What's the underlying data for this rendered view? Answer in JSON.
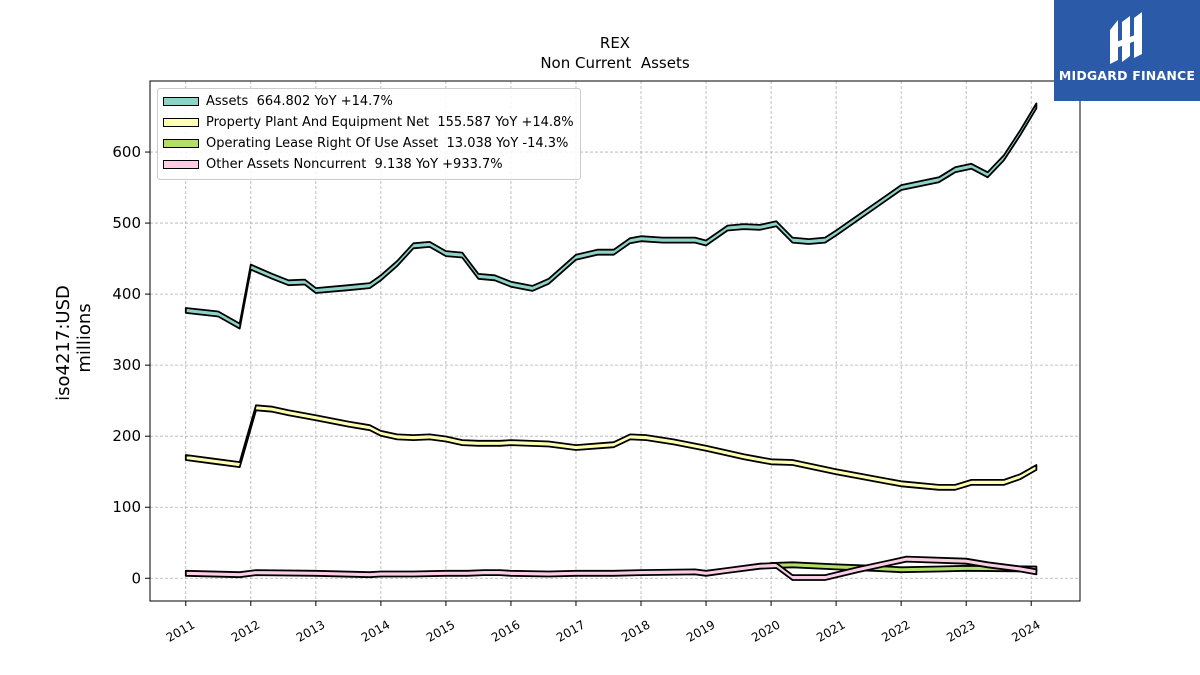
{
  "brand": {
    "name": "MIDGARD FINANCE",
    "color": "#2b5aa8"
  },
  "chart_data": {
    "type": "area",
    "title": "REX",
    "subtitle": "Non Current  Assets",
    "ylabel": "iso4217:USD",
    "ylabel2": "millions",
    "xlabel": "",
    "ylim": [
      -32,
      700
    ],
    "xlim": [
      2010.45,
      2024.75
    ],
    "yticks": [
      0,
      100,
      200,
      300,
      400,
      500,
      600
    ],
    "xticks": [
      "2011",
      "2012",
      "2013",
      "2014",
      "2015",
      "2016",
      "2017",
      "2018",
      "2019",
      "2020",
      "2021",
      "2022",
      "2023",
      "2024"
    ],
    "grid": true,
    "legend_position": "top-left",
    "series": [
      {
        "name": "Assets",
        "legend": "Assets  664.802 YoY +14.7%",
        "color": "#8dd3c7",
        "points": [
          [
            2011.0,
            377
          ],
          [
            2011.5,
            372
          ],
          [
            2011.83,
            355
          ],
          [
            2012.0,
            438
          ],
          [
            2012.33,
            425
          ],
          [
            2012.58,
            416
          ],
          [
            2012.83,
            417
          ],
          [
            2013.0,
            405
          ],
          [
            2013.5,
            409
          ],
          [
            2013.83,
            412
          ],
          [
            2014.0,
            423
          ],
          [
            2014.25,
            443
          ],
          [
            2014.5,
            468
          ],
          [
            2014.75,
            470
          ],
          [
            2015.0,
            457
          ],
          [
            2015.25,
            455
          ],
          [
            2015.5,
            425
          ],
          [
            2015.75,
            423
          ],
          [
            2016.0,
            414
          ],
          [
            2016.33,
            408
          ],
          [
            2016.58,
            418
          ],
          [
            2017.0,
            452
          ],
          [
            2017.33,
            459
          ],
          [
            2017.58,
            459
          ],
          [
            2017.83,
            475
          ],
          [
            2018.0,
            478
          ],
          [
            2018.33,
            476
          ],
          [
            2018.83,
            476
          ],
          [
            2019.0,
            472
          ],
          [
            2019.33,
            493
          ],
          [
            2019.58,
            495
          ],
          [
            2019.83,
            494
          ],
          [
            2020.08,
            499
          ],
          [
            2020.33,
            476
          ],
          [
            2020.58,
            474
          ],
          [
            2020.83,
            476
          ],
          [
            2021.0,
            486
          ],
          [
            2022.0,
            550
          ],
          [
            2022.58,
            561
          ],
          [
            2022.83,
            575
          ],
          [
            2023.08,
            580
          ],
          [
            2023.33,
            568
          ],
          [
            2023.58,
            592
          ],
          [
            2023.83,
            627
          ],
          [
            2024.08,
            665
          ]
        ]
      },
      {
        "name": "Property Plant And Equipment Net",
        "legend": "Property Plant And Equipment Net  155.587 YoY +14.8%",
        "color": "#ffffb3",
        "points": [
          [
            2011.0,
            170
          ],
          [
            2011.5,
            164
          ],
          [
            2011.83,
            160
          ],
          [
            2012.08,
            240
          ],
          [
            2012.33,
            238
          ],
          [
            2012.58,
            233
          ],
          [
            2013.0,
            226
          ],
          [
            2013.5,
            217
          ],
          [
            2013.83,
            212
          ],
          [
            2014.0,
            204
          ],
          [
            2014.25,
            199
          ],
          [
            2014.5,
            198
          ],
          [
            2014.75,
            199
          ],
          [
            2015.0,
            196
          ],
          [
            2015.25,
            191
          ],
          [
            2015.5,
            190
          ],
          [
            2015.83,
            190
          ],
          [
            2016.0,
            191
          ],
          [
            2016.58,
            189
          ],
          [
            2017.0,
            184
          ],
          [
            2017.58,
            188
          ],
          [
            2017.83,
            199
          ],
          [
            2018.08,
            198
          ],
          [
            2018.5,
            192
          ],
          [
            2019.0,
            183
          ],
          [
            2019.58,
            171
          ],
          [
            2020.0,
            164
          ],
          [
            2020.33,
            163
          ],
          [
            2021.0,
            150
          ],
          [
            2021.58,
            140
          ],
          [
            2022.0,
            133
          ],
          [
            2022.58,
            128
          ],
          [
            2022.83,
            128
          ],
          [
            2023.08,
            135
          ],
          [
            2023.58,
            135
          ],
          [
            2023.83,
            143
          ],
          [
            2024.08,
            156
          ]
        ]
      },
      {
        "name": "Operating Lease Right Of Use Asset",
        "legend": "Operating Lease Right Of Use Asset  13.038 YoY -14.3%",
        "color": "#b3de69",
        "points": [
          [
            2020.0,
            18
          ],
          [
            2020.33,
            19
          ],
          [
            2021.0,
            16
          ],
          [
            2021.58,
            14
          ],
          [
            2022.0,
            12
          ],
          [
            2022.58,
            13
          ],
          [
            2023.0,
            14
          ],
          [
            2024.08,
            13
          ]
        ]
      },
      {
        "name": "Other Assets Noncurrent",
        "legend": "Other Assets Noncurrent  9.138 YoY +933.7%",
        "color": "#fccde5",
        "points": [
          [
            2011.0,
            7
          ],
          [
            2011.83,
            5
          ],
          [
            2012.08,
            8
          ],
          [
            2013.0,
            7
          ],
          [
            2013.83,
            5
          ],
          [
            2014.0,
            6
          ],
          [
            2014.5,
            6
          ],
          [
            2015.0,
            7
          ],
          [
            2015.33,
            7
          ],
          [
            2015.58,
            8
          ],
          [
            2015.83,
            8
          ],
          [
            2016.0,
            7
          ],
          [
            2016.58,
            6
          ],
          [
            2017.0,
            7
          ],
          [
            2017.58,
            7
          ],
          [
            2018.0,
            8
          ],
          [
            2018.83,
            9
          ],
          [
            2019.0,
            7
          ],
          [
            2019.33,
            11
          ],
          [
            2019.83,
            17
          ],
          [
            2020.08,
            18
          ],
          [
            2020.33,
            1
          ],
          [
            2020.83,
            1
          ],
          [
            2021.33,
            12
          ],
          [
            2021.83,
            22
          ],
          [
            2022.08,
            27
          ],
          [
            2023.0,
            24
          ],
          [
            2023.33,
            19
          ],
          [
            2023.83,
            13
          ],
          [
            2024.08,
            9
          ]
        ]
      }
    ]
  }
}
